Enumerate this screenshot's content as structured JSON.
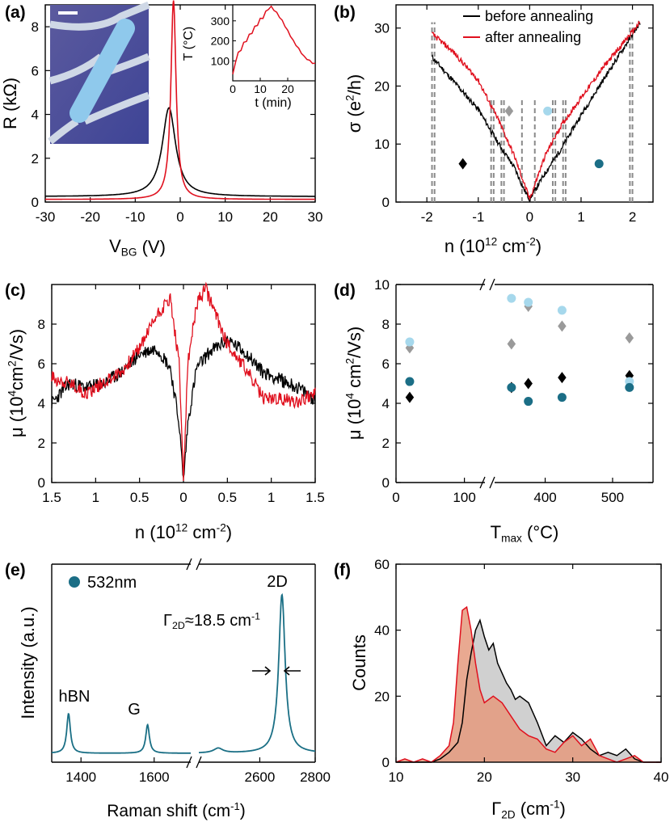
{
  "colors": {
    "black": "#000000",
    "red": "#e0101e",
    "teal": "#1b6e86",
    "lightblue": "#a6d8ec",
    "gray": "#9a9a9a",
    "dashed": "#8a8a8a",
    "raman": "#1a6f85",
    "hist_gray_fill": "#c8c8c8",
    "hist_red_fill": "#e59a7e"
  },
  "chart_data": [
    {
      "panel": "(a)",
      "type": "line",
      "xlabel": "V",
      "xlabel_sub": "BG",
      "xlabel_unit": "(V)",
      "ylabel": "R (kΩ)",
      "xlim": [
        -30,
        30
      ],
      "ylim": [
        0,
        9
      ],
      "xticks": [
        -30,
        -20,
        -10,
        0,
        10,
        20,
        30
      ],
      "xtick_labels": [
        "-30",
        "-20",
        "-10",
        "0",
        "10",
        "20",
        "30"
      ],
      "yticks": [
        0,
        2,
        4,
        6,
        8
      ],
      "ytick_labels": [
        "0",
        "2",
        "4",
        "6",
        "8"
      ],
      "series": [
        {
          "name": "before annealing",
          "color": "black",
          "peak_x": -2.5,
          "peak_y": 4.3,
          "width": 1.8,
          "base": 0.25
        },
        {
          "name": "after annealing",
          "color": "red",
          "peak_x": -1.5,
          "peak_y": 9.2,
          "width": 0.7,
          "base": 0.12
        }
      ],
      "inset": {
        "type": "line",
        "xlabel": "t (min)",
        "ylabel": "T (°C)",
        "xlim": [
          0,
          30
        ],
        "ylim": [
          0,
          380
        ],
        "xticks": [
          0,
          10,
          20
        ],
        "xtick_labels": [
          "0",
          "10",
          "20"
        ],
        "yticks": [
          100,
          200,
          300
        ],
        "ytick_labels": [
          "100",
          "200",
          "300"
        ],
        "x": [
          0,
          1,
          2,
          3,
          4,
          5,
          6,
          7,
          8,
          9,
          10,
          11,
          12,
          13,
          14,
          15,
          16,
          17,
          18,
          19,
          20,
          21,
          22,
          23,
          24,
          25,
          26,
          27,
          28,
          29,
          30
        ],
        "y": [
          25,
          100,
          135,
          160,
          185,
          205,
          225,
          245,
          265,
          285,
          305,
          320,
          340,
          365,
          370,
          355,
          340,
          320,
          300,
          275,
          250,
          225,
          200,
          180,
          160,
          140,
          120,
          110,
          100,
          90,
          85
        ]
      }
    },
    {
      "panel": "(b)",
      "type": "line",
      "xlabel": "n (10",
      "xlabel_sup": "12",
      "xlabel_rest": " cm",
      "xlabel_sup2": "-2",
      "xlabel_end": ")",
      "ylabel": "σ (e",
      "ylabel_sup": "2",
      "ylabel_end": "/h)",
      "xlim": [
        -2.6,
        2.4
      ],
      "ylim": [
        0,
        34
      ],
      "xticks": [
        -2,
        -1,
        0,
        1,
        2
      ],
      "xtick_labels": [
        "-2",
        "-1",
        "0",
        "1",
        "2"
      ],
      "yticks": [
        0,
        10,
        20,
        30
      ],
      "ytick_labels": [
        "0",
        "10",
        "20",
        "30"
      ],
      "legend": {
        "position": "top-right",
        "entries": [
          {
            "label": "before annealing",
            "color": "black"
          },
          {
            "label": "after annealing",
            "color": "red"
          }
        ]
      },
      "series": [
        {
          "name": "before annealing",
          "color": "black",
          "x": [
            -1.9,
            -1.5,
            -1.0,
            -0.6,
            -0.3,
            -0.1,
            0,
            0.1,
            0.3,
            0.6,
            1.0,
            1.5,
            2.15
          ],
          "y": [
            25,
            21,
            16,
            10,
            6,
            2,
            0.5,
            2,
            5,
            9,
            15,
            22,
            31
          ]
        },
        {
          "name": "after annealing",
          "color": "red",
          "x": [
            -1.9,
            -1.5,
            -1.0,
            -0.6,
            -0.3,
            -0.1,
            0,
            0.1,
            0.3,
            0.6,
            1.0,
            1.5,
            2.15
          ],
          "y": [
            29,
            26,
            21,
            14,
            8,
            3,
            0.5,
            3,
            8,
            13,
            18,
            24,
            31
          ]
        }
      ],
      "dashed_lines": [
        {
          "x": -1.9,
          "ymax": 31
        },
        {
          "x": -1.85,
          "ymax": 31
        },
        {
          "x": -0.75,
          "ymax": 18
        },
        {
          "x": -0.7,
          "ymax": 18
        },
        {
          "x": -0.55,
          "ymax": 18
        },
        {
          "x": -0.5,
          "ymax": 18
        },
        {
          "x": -0.15,
          "ymax": 18
        },
        {
          "x": 0.1,
          "ymax": 18
        },
        {
          "x": 0.45,
          "ymax": 18
        },
        {
          "x": 0.5,
          "ymax": 18
        },
        {
          "x": 0.65,
          "ymax": 18
        },
        {
          "x": 0.7,
          "ymax": 18
        },
        {
          "x": 1.95,
          "ymax": 31
        },
        {
          "x": 2.0,
          "ymax": 31
        }
      ],
      "markers": [
        {
          "shape": "diamond",
          "color": "black",
          "x": -1.3,
          "y": 6.6
        },
        {
          "shape": "diamond",
          "color": "gray",
          "x": -0.4,
          "y": 15.7
        },
        {
          "shape": "circle",
          "color": "lightblue",
          "x": 0.35,
          "y": 15.7
        },
        {
          "shape": "circle",
          "color": "teal",
          "x": 1.35,
          "y": 6.6
        }
      ]
    },
    {
      "panel": "(c)",
      "type": "line",
      "xlabel": "n (10",
      "xlabel_sup": "12",
      "xlabel_rest": " cm",
      "xlabel_sup2": "-2",
      "xlabel_end": ")",
      "ylabel": "μ (10",
      "ylabel_sup": "4",
      "ylabel_rest": "cm",
      "ylabel_sup2": "2",
      "ylabel_end": "/Vs)",
      "xlim": [
        -1.5,
        1.5
      ],
      "ylim": [
        0,
        10
      ],
      "xticks": [
        -1.5,
        -1,
        -0.5,
        0,
        0.5,
        1,
        1.5
      ],
      "xtick_labels": [
        "1.5",
        "1",
        "0.5",
        "0",
        "0.5",
        "1",
        "1.5"
      ],
      "yticks": [
        0,
        2,
        4,
        6,
        8
      ],
      "ytick_labels": [
        "0",
        "2",
        "4",
        "6",
        "8"
      ],
      "series": [
        {
          "name": "before annealing",
          "color": "black",
          "x": [
            -1.5,
            -1.3,
            -1.1,
            -0.9,
            -0.7,
            -0.5,
            -0.3,
            -0.15,
            -0.05,
            0,
            0.05,
            0.15,
            0.3,
            0.5,
            0.7,
            0.9,
            1.1,
            1.3,
            1.5
          ],
          "y": [
            4.0,
            5.0,
            4.8,
            5.0,
            5.6,
            6.5,
            6.8,
            5.8,
            3.0,
            0.1,
            3.0,
            5.8,
            6.6,
            7.2,
            6.6,
            5.6,
            5.2,
            4.8,
            4.2
          ]
        },
        {
          "name": "after annealing",
          "color": "red",
          "x": [
            -1.5,
            -1.3,
            -1.1,
            -0.9,
            -0.7,
            -0.5,
            -0.3,
            -0.15,
            -0.05,
            0,
            0.05,
            0.15,
            0.25,
            0.35,
            0.5,
            0.7,
            0.9,
            1.1,
            1.3,
            1.5
          ],
          "y": [
            5.3,
            5.0,
            4.5,
            5.1,
            5.6,
            6.8,
            8.5,
            9.3,
            6.0,
            0.3,
            6.0,
            9.0,
            9.8,
            8.7,
            7.0,
            5.8,
            4.3,
            4.2,
            4.1,
            4.5
          ]
        }
      ]
    },
    {
      "panel": "(d)",
      "type": "scatter",
      "xlabel": "T",
      "xlabel_sub": "max",
      "xlabel_unit": " (°C)",
      "ylabel": "μ (10",
      "ylabel_sup": "4",
      "ylabel_rest": " cm",
      "ylabel_sup2": "2",
      "ylabel_end": "/Vs)",
      "ylim": [
        0,
        10
      ],
      "xtick_labels": [
        "0",
        "100",
        "400",
        "500"
      ],
      "yticks": [
        0,
        2,
        4,
        6,
        8,
        10
      ],
      "ytick_labels": [
        "0",
        "2",
        "4",
        "6",
        "8",
        "10"
      ],
      "axis_break": "between 100 and 400",
      "series": [
        {
          "name": "black diamond",
          "shape": "diamond",
          "color": "black",
          "x": [
            20,
            350,
            375,
            425,
            525
          ],
          "y": [
            4.3,
            4.8,
            5.0,
            5.3,
            5.4
          ]
        },
        {
          "name": "gray diamond",
          "shape": "diamond",
          "color": "gray",
          "x": [
            20,
            350,
            375,
            425,
            525
          ],
          "y": [
            6.8,
            7.0,
            8.9,
            7.9,
            7.3
          ]
        },
        {
          "name": "light blue circle",
          "shape": "circle",
          "color": "lightblue",
          "x": [
            20,
            350,
            375,
            425,
            525
          ],
          "y": [
            7.1,
            9.3,
            9.1,
            8.7,
            5.1
          ]
        },
        {
          "name": "teal circle",
          "shape": "circle",
          "color": "teal",
          "x": [
            20,
            350,
            375,
            425,
            525
          ],
          "y": [
            5.1,
            4.8,
            4.1,
            4.3,
            4.8
          ]
        }
      ]
    },
    {
      "panel": "(e)",
      "type": "line",
      "xlabel": "Raman shift (cm",
      "xlabel_sup": "-1",
      "xlabel_end": ")",
      "ylabel": "Intensity (a.u.)",
      "xtick_labels": [
        "1400",
        "1600",
        "2600",
        "2800"
      ],
      "axis_break": "between 1600 and 2600",
      "legend": {
        "label": "532nm",
        "color": "teal",
        "shape": "circle"
      },
      "annotations": [
        {
          "text": "hBN",
          "x": 1366
        },
        {
          "text": "G",
          "x": 1582
        },
        {
          "text": "2D",
          "x": 2680
        }
      ],
      "width_annotation": {
        "symbol": "Γ",
        "sub": "2D",
        "text": "≈18.5 cm",
        "sup": "-1"
      },
      "peaks": [
        {
          "name": "hBN",
          "x": 1366,
          "height": 0.25
        },
        {
          "name": "G",
          "x": 1582,
          "height": 0.18
        },
        {
          "name": "small",
          "x": 2450,
          "height": 0.03
        },
        {
          "name": "2D",
          "x": 2680,
          "height": 1.0
        }
      ]
    },
    {
      "panel": "(f)",
      "type": "area",
      "xlabel": "Γ",
      "xlabel_sub": "2D",
      "xlabel_unit": "  (cm",
      "xlabel_sup": "-1",
      "xlabel_end": ")",
      "ylabel": "Counts",
      "xlim": [
        10,
        40
      ],
      "ylim": [
        0,
        60
      ],
      "xticks": [
        10,
        20,
        30,
        40
      ],
      "xtick_labels": [
        "10",
        "20",
        "30",
        "40"
      ],
      "yticks": [
        0,
        20,
        40,
        60
      ],
      "ytick_labels": [
        "0",
        "20",
        "40",
        "60"
      ],
      "series": [
        {
          "name": "before annealing",
          "color": "black",
          "fill": "hist_gray_fill",
          "x": [
            10,
            12,
            14,
            15,
            16,
            17,
            17.5,
            18,
            18.5,
            19,
            19.5,
            20,
            20.5,
            21,
            21.5,
            22,
            22.5,
            23,
            23.5,
            24,
            25,
            26,
            27,
            28,
            29,
            30,
            31,
            32,
            33,
            34,
            35,
            36,
            37,
            38,
            40
          ],
          "y": [
            0,
            0,
            0,
            1,
            3,
            6,
            12,
            25,
            33,
            40,
            43,
            38,
            34,
            36,
            30,
            27,
            24,
            22,
            19,
            20,
            18,
            12,
            5,
            8,
            6,
            9,
            7,
            4,
            2,
            3,
            2,
            4,
            1,
            0,
            0
          ]
        },
        {
          "name": "after annealing",
          "color": "red",
          "fill": "hist_red_fill",
          "x": [
            10,
            11,
            12,
            13,
            14,
            15,
            16,
            16.5,
            17,
            17.5,
            18,
            18.5,
            19,
            19.5,
            20,
            21,
            22,
            23,
            24,
            25,
            26,
            27,
            28,
            29,
            30,
            31,
            32,
            33,
            34,
            35,
            36,
            37,
            38,
            40
          ],
          "y": [
            0,
            1,
            0,
            1,
            0,
            2,
            5,
            12,
            30,
            46,
            47,
            40,
            30,
            22,
            18,
            20,
            18,
            14,
            10,
            8,
            7,
            4,
            3,
            6,
            8,
            5,
            7,
            2,
            1,
            0,
            1,
            2,
            0,
            0
          ]
        }
      ]
    }
  ],
  "panels": [
    "(a)",
    "(b)",
    "(c)",
    "(d)",
    "(e)",
    "(f)"
  ]
}
